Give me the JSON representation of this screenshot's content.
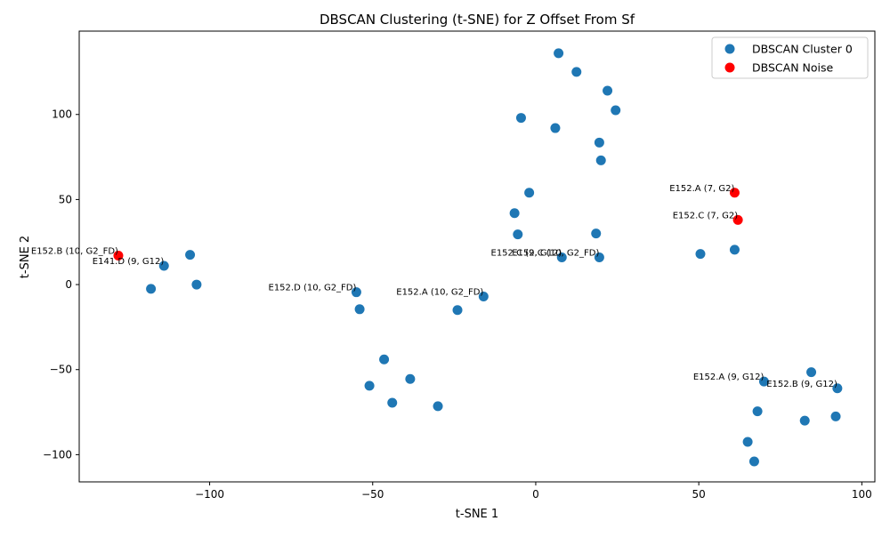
{
  "chart_data": {
    "type": "scatter",
    "title": "DBSCAN Clustering (t-SNE) for Z Offset From Sf",
    "xlabel": "t-SNE 1",
    "ylabel": "t-SNE 2",
    "xlim": [
      -140,
      104
    ],
    "ylim": [
      -116,
      149
    ],
    "xticks": [
      -100,
      -50,
      0,
      50,
      100
    ],
    "yticks": [
      -100,
      -50,
      0,
      50,
      100
    ],
    "grid": false,
    "legend_position": "top-right",
    "series": [
      {
        "name": "DBSCAN Cluster 0",
        "color": "#1f77b4",
        "points": [
          [
            7,
            136
          ],
          [
            12.5,
            125
          ],
          [
            22,
            114
          ],
          [
            24.5,
            102.5
          ],
          [
            -4.5,
            98
          ],
          [
            6,
            92
          ],
          [
            19.5,
            83.5
          ],
          [
            20,
            73
          ],
          [
            -2,
            54
          ],
          [
            -6.5,
            42
          ],
          [
            -5.5,
            29.5
          ],
          [
            18.5,
            30
          ],
          [
            8,
            16
          ],
          [
            19.5,
            16
          ],
          [
            50.5,
            18
          ],
          [
            61,
            20.5
          ],
          [
            -106,
            17.5
          ],
          [
            -114,
            11
          ],
          [
            -118,
            -2.5
          ],
          [
            -104,
            0
          ],
          [
            -55,
            -4.5
          ],
          [
            -54,
            -14.5
          ],
          [
            -24,
            -15
          ],
          [
            -16,
            -7
          ],
          [
            -46.5,
            -44
          ],
          [
            -38.5,
            -55.5
          ],
          [
            -51,
            -59.5
          ],
          [
            -44,
            -69.5
          ],
          [
            -30,
            -71.5
          ],
          [
            70,
            -57
          ],
          [
            84.5,
            -51.5
          ],
          [
            92.5,
            -61
          ],
          [
            68,
            -74.5
          ],
          [
            82.5,
            -80
          ],
          [
            92,
            -77.5
          ],
          [
            65,
            -92.5
          ],
          [
            67,
            -104
          ]
        ]
      },
      {
        "name": "DBSCAN Noise",
        "color": "#ff0000",
        "points": [
          [
            61,
            54
          ],
          [
            62,
            38
          ],
          [
            -128,
            17
          ]
        ]
      }
    ],
    "annotations": [
      {
        "text": "E152.A (7, G2)",
        "x": 61,
        "y": 54
      },
      {
        "text": "E152.C (7, G2)",
        "x": 62,
        "y": 38
      },
      {
        "text": "E152.B (10, G2_FD)",
        "x": -128,
        "y": 17
      },
      {
        "text": "E141.D (9, G12)",
        "x": -114,
        "y": 11
      },
      {
        "text": "E152.C (9, G12)",
        "x": 8,
        "y": 16
      },
      {
        "text": "E152.C (10, G2_FD)",
        "x": 19.5,
        "y": 16
      },
      {
        "text": "E152.D (10, G2_FD)",
        "x": -55,
        "y": -4.5
      },
      {
        "text": "E152.A (10, G2_FD)",
        "x": -16,
        "y": -7
      },
      {
        "text": "E152.A (9, G12)",
        "x": 70,
        "y": -57
      },
      {
        "text": "E152.B (9, G12)",
        "x": 92.5,
        "y": -61
      }
    ]
  }
}
